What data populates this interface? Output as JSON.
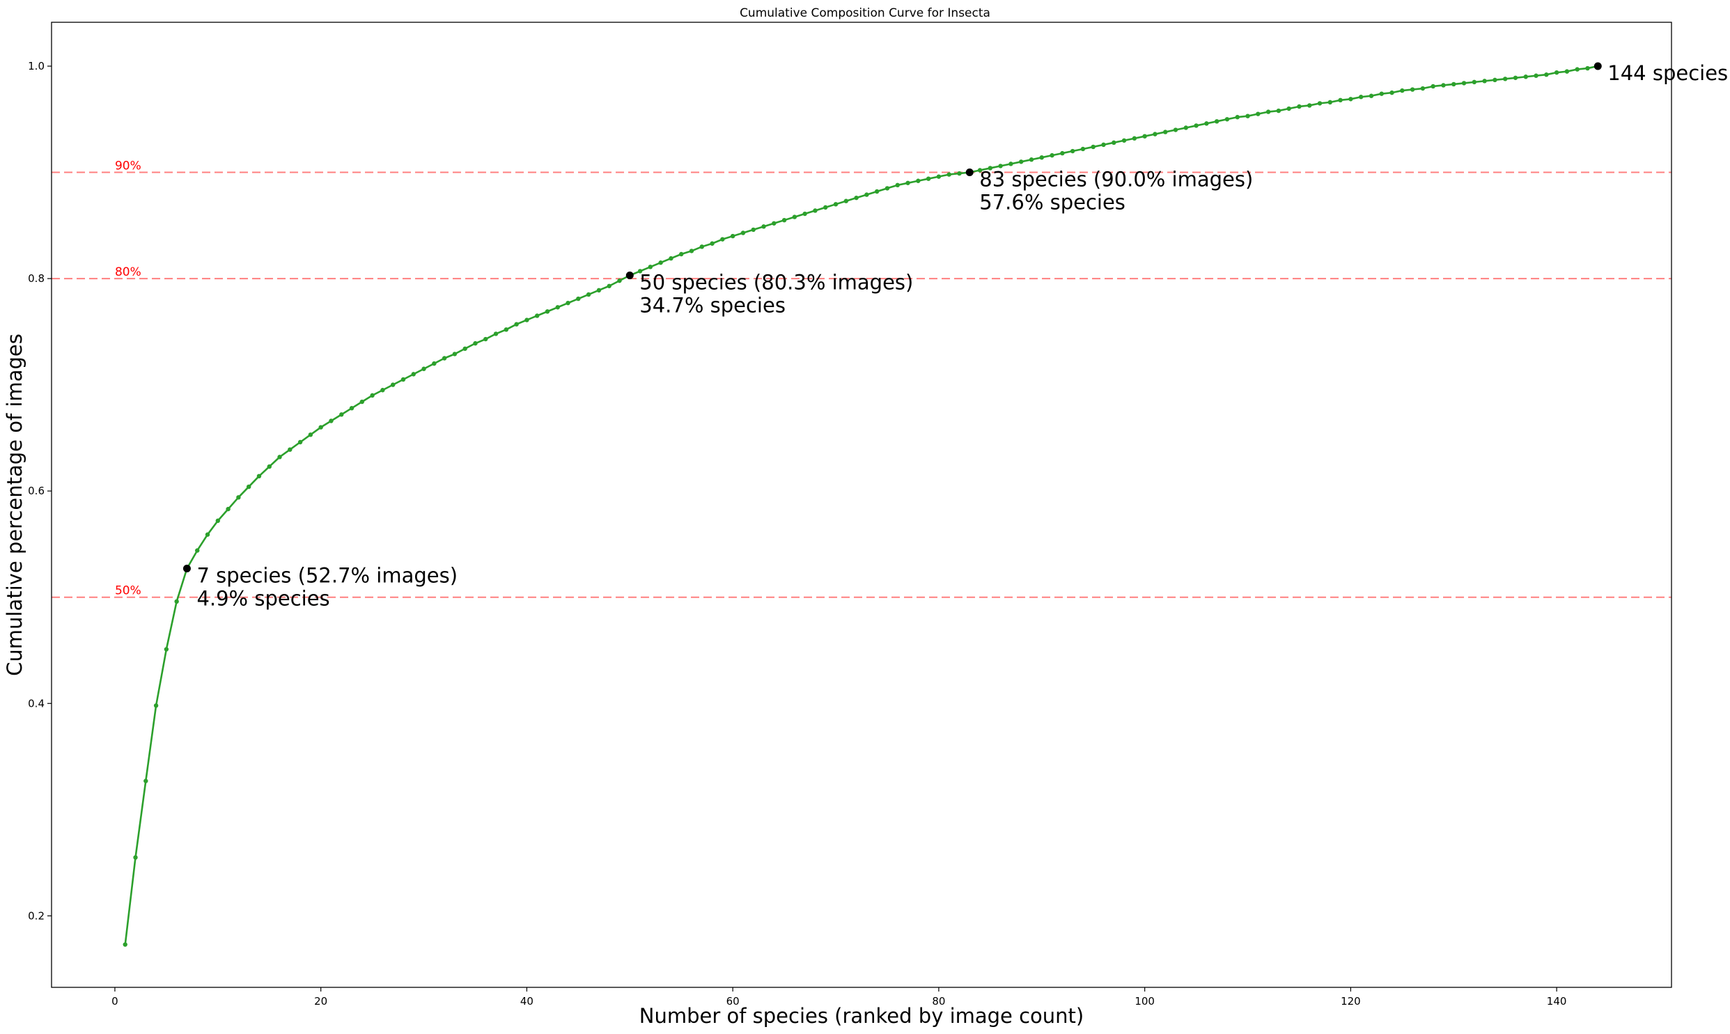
{
  "chart_data": {
    "type": "line",
    "title": "Cumulative Composition Curve for Insecta",
    "xlabel": "Number of species (ranked by image count)",
    "ylabel": "Cumulative percentage of images",
    "xlim": [
      -6.15,
      151.15
    ],
    "ylim": [
      0.1327,
      1.0413
    ],
    "xticks": [
      0,
      20,
      40,
      60,
      80,
      100,
      120,
      140
    ],
    "xtick_labels": [
      "0",
      "20",
      "40",
      "60",
      "80",
      "100",
      "120",
      "140"
    ],
    "yticks": [
      0.2,
      0.4,
      0.6,
      0.8,
      1.0
    ],
    "ytick_labels": [
      "0.2",
      "0.4",
      "0.6",
      "0.8",
      "1.0"
    ],
    "grid": false,
    "line_color": "#2ca02c",
    "threshold_color": "#ff0000",
    "thresholds": [
      {
        "y": 0.5,
        "label": "50%"
      },
      {
        "y": 0.8,
        "label": "80%"
      },
      {
        "y": 0.9,
        "label": "90%"
      }
    ],
    "series": [
      {
        "x": [
          1,
          2,
          3,
          4,
          5,
          6,
          7,
          8,
          9,
          10,
          11,
          12,
          13,
          14,
          15,
          16,
          17,
          18,
          19,
          20,
          21,
          22,
          23,
          24,
          25,
          26,
          27,
          28,
          29,
          30,
          31,
          32,
          33,
          34,
          35,
          36,
          37,
          38,
          39,
          40,
          41,
          42,
          43,
          44,
          45,
          46,
          47,
          48,
          49,
          50,
          51,
          52,
          53,
          54,
          55,
          56,
          57,
          58,
          59,
          60,
          61,
          62,
          63,
          64,
          65,
          66,
          67,
          68,
          69,
          70,
          71,
          72,
          73,
          74,
          75,
          76,
          77,
          78,
          79,
          80,
          81,
          82,
          83,
          84,
          85,
          86,
          87,
          88,
          89,
          90,
          91,
          92,
          93,
          94,
          95,
          96,
          97,
          98,
          99,
          100,
          101,
          102,
          103,
          104,
          105,
          106,
          107,
          108,
          109,
          110,
          111,
          112,
          113,
          114,
          115,
          116,
          117,
          118,
          119,
          120,
          121,
          122,
          123,
          124,
          125,
          126,
          127,
          128,
          129,
          130,
          131,
          132,
          133,
          134,
          135,
          136,
          137,
          138,
          139,
          140,
          141,
          142,
          143,
          144
        ],
        "y": [
          0.173,
          0.255,
          0.327,
          0.398,
          0.451,
          0.496,
          0.527,
          0.544,
          0.559,
          0.572,
          0.583,
          0.594,
          0.604,
          0.614,
          0.623,
          0.632,
          0.639,
          0.646,
          0.653,
          0.66,
          0.666,
          0.672,
          0.678,
          0.684,
          0.69,
          0.695,
          0.7,
          0.705,
          0.71,
          0.715,
          0.72,
          0.725,
          0.729,
          0.734,
          0.739,
          0.743,
          0.748,
          0.752,
          0.757,
          0.761,
          0.765,
          0.769,
          0.773,
          0.777,
          0.781,
          0.785,
          0.789,
          0.793,
          0.798,
          0.803,
          0.807,
          0.811,
          0.815,
          0.819,
          0.823,
          0.826,
          0.83,
          0.833,
          0.837,
          0.84,
          0.843,
          0.846,
          0.849,
          0.852,
          0.855,
          0.858,
          0.861,
          0.864,
          0.867,
          0.87,
          0.873,
          0.876,
          0.879,
          0.882,
          0.885,
          0.888,
          0.89,
          0.892,
          0.894,
          0.896,
          0.898,
          0.899,
          0.9,
          0.902,
          0.904,
          0.906,
          0.908,
          0.91,
          0.912,
          0.914,
          0.916,
          0.918,
          0.92,
          0.922,
          0.924,
          0.926,
          0.928,
          0.93,
          0.932,
          0.934,
          0.936,
          0.938,
          0.94,
          0.942,
          0.944,
          0.946,
          0.948,
          0.95,
          0.952,
          0.953,
          0.955,
          0.957,
          0.958,
          0.96,
          0.962,
          0.963,
          0.965,
          0.966,
          0.968,
          0.969,
          0.971,
          0.972,
          0.974,
          0.975,
          0.977,
          0.978,
          0.979,
          0.981,
          0.982,
          0.983,
          0.984,
          0.985,
          0.986,
          0.987,
          0.988,
          0.989,
          0.99,
          0.991,
          0.992,
          0.994,
          0.995,
          0.997,
          0.998,
          1.0
        ]
      }
    ],
    "key_points": [
      {
        "x": 7,
        "y": 0.527,
        "line1": "7 species (52.7% images)",
        "line2": "4.9% species"
      },
      {
        "x": 50,
        "y": 0.803,
        "line1": "50 species (80.3% images)",
        "line2": "34.7% species"
      },
      {
        "x": 83,
        "y": 0.9,
        "line1": "83 species (90.0% images)",
        "line2": "57.6% species"
      },
      {
        "x": 144,
        "y": 1.0,
        "line1": "144 species",
        "line2": ""
      }
    ]
  }
}
